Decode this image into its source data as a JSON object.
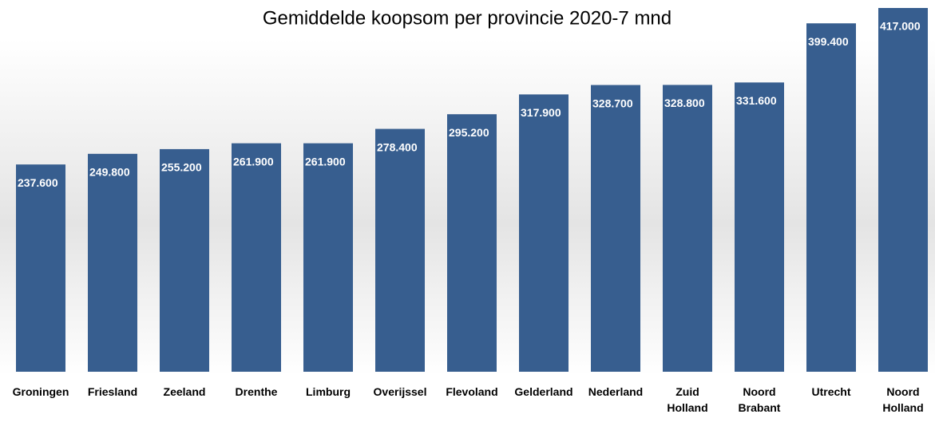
{
  "chart_data": {
    "type": "bar",
    "title": "Gemiddelde koopsom per provincie 2020-7 mnd",
    "categories": [
      "Groningen",
      "Friesland",
      "Zeeland",
      "Drenthe",
      "Limburg",
      "Overijssel",
      "Flevoland",
      "Gelderland",
      "Nederland",
      "Zuid Holland",
      "Noord Brabant",
      "Utrecht",
      "Noord Holland"
    ],
    "values": [
      237600,
      249800,
      255200,
      261900,
      261900,
      278400,
      295200,
      317900,
      328700,
      328800,
      331600,
      399400,
      417000
    ],
    "value_labels": [
      "237.600",
      "249.800",
      "255.200",
      "261.900",
      "261.900",
      "278.400",
      "295.200",
      "317.900",
      "328.700",
      "328.800",
      "331.600",
      "399.400",
      "417.000"
    ],
    "color": "#375e8f"
  }
}
